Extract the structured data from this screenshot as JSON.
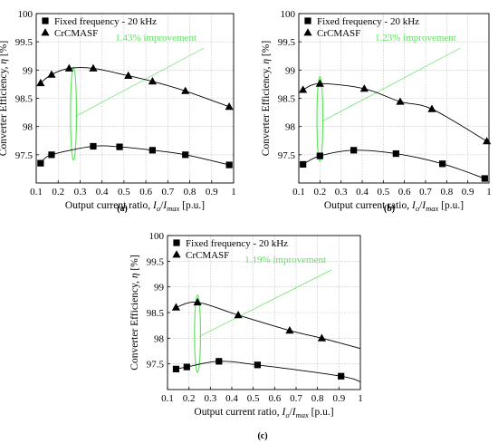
{
  "chart_data": [
    {
      "type": "line",
      "panel": "(a)",
      "xlabel_main": "Output current ratio, ",
      "xlabel_var": "I",
      "xlabel_sub_o": "o",
      "xlabel_slash": "/",
      "xlabel_sub_max": "max",
      "xlabel_unit": " [p.u.]",
      "ylabel_main": "Converter Efficiency, ",
      "ylabel_var": "η",
      "ylabel_unit": " [%]",
      "xlim": [
        0.1,
        1
      ],
      "ylim": [
        97,
        100
      ],
      "xticks": [
        "0.1",
        "0.2",
        "0.3",
        "0.4",
        "0.5",
        "0.6",
        "0.7",
        "0.8",
        "0.9",
        "1"
      ],
      "yticks": [
        "97.5",
        "98",
        "98.5",
        "99",
        "99.5",
        "100"
      ],
      "annotation": "1.43% improvement",
      "ellipse_x": 0.27,
      "series": [
        {
          "name": "Fixed frequency - 20 kHz",
          "marker": "square",
          "x": [
            0.12,
            0.17,
            0.36,
            0.48,
            0.63,
            0.78,
            0.98
          ],
          "y": [
            97.35,
            97.5,
            97.65,
            97.64,
            97.58,
            97.5,
            97.32
          ]
        },
        {
          "name": "CrCMASF",
          "marker": "triangle",
          "x": [
            0.12,
            0.17,
            0.25,
            0.36,
            0.52,
            0.63,
            0.78,
            0.98
          ],
          "y": [
            98.77,
            98.92,
            99.03,
            99.03,
            98.9,
            98.8,
            98.63,
            98.35
          ]
        }
      ]
    },
    {
      "type": "line",
      "panel": "(b)",
      "xlabel_main": "Output current ratio, ",
      "xlabel_var": "I",
      "xlabel_sub_o": "o",
      "xlabel_slash": "/",
      "xlabel_sub_max": "max",
      "xlabel_unit": " [p.u.]",
      "ylabel_main": "Converter Efficiency, ",
      "ylabel_var": "η",
      "ylabel_unit": " [%]",
      "xlim": [
        0.1,
        1
      ],
      "ylim": [
        97,
        100
      ],
      "xticks": [
        "0.1",
        "0.2",
        "0.3",
        "0.4",
        "0.5",
        "0.6",
        "0.7",
        "0.8",
        "0.9",
        "1"
      ],
      "yticks": [
        "97.5",
        "98",
        "98.5",
        "99",
        "99.5",
        "100"
      ],
      "annotation": "1.23% improvement",
      "ellipse_x": 0.2,
      "series": [
        {
          "name": "Fixed frequency - 20 kHz",
          "marker": "square",
          "x": [
            0.12,
            0.2,
            0.36,
            0.56,
            0.78,
            0.98
          ],
          "y": [
            97.33,
            97.48,
            97.58,
            97.52,
            97.34,
            97.08
          ]
        },
        {
          "name": "CrCMASF",
          "marker": "triangle",
          "x": [
            0.12,
            0.2,
            0.41,
            0.58,
            0.73,
            0.99
          ],
          "y": [
            98.65,
            98.76,
            98.67,
            98.44,
            98.31,
            97.74
          ]
        }
      ]
    },
    {
      "type": "line",
      "panel": "(c)",
      "xlabel_main": "Output current ratio, ",
      "xlabel_var": "I",
      "xlabel_sub_o": "o",
      "xlabel_slash": "/",
      "xlabel_sub_max": "max",
      "xlabel_unit": " [p.u.]",
      "ylabel_main": "Converter Efficiency, ",
      "ylabel_var": "η",
      "ylabel_unit": " [%]",
      "xlim": [
        0.1,
        1
      ],
      "ylim": [
        97,
        100
      ],
      "xticks": [
        "0.1",
        "0.2",
        "0.3",
        "0.4",
        "0.5",
        "0.6",
        "0.7",
        "0.8",
        "0.9",
        "1"
      ],
      "yticks": [
        "97.5",
        "98",
        "98.5",
        "99",
        "99.5",
        "100"
      ],
      "annotation": "1.19% improvement",
      "ellipse_x": 0.24,
      "series": [
        {
          "name": "Fixed frequency - 20 kHz",
          "marker": "square",
          "x": [
            0.14,
            0.19,
            0.34,
            0.52,
            0.91,
            1.0
          ],
          "y": [
            97.4,
            97.44,
            97.55,
            97.48,
            97.26,
            97.15
          ]
        },
        {
          "name": "CrCMASF",
          "marker": "triangle",
          "x": [
            0.14,
            0.24,
            0.43,
            0.67,
            0.82,
            1.0
          ],
          "y": [
            98.6,
            98.7,
            98.45,
            98.15,
            98.0,
            97.8
          ]
        }
      ]
    }
  ],
  "colors": {
    "axis": "#000000",
    "grid": "#bdbdbd",
    "annotation": "#5fe35f",
    "series": "#000000"
  }
}
